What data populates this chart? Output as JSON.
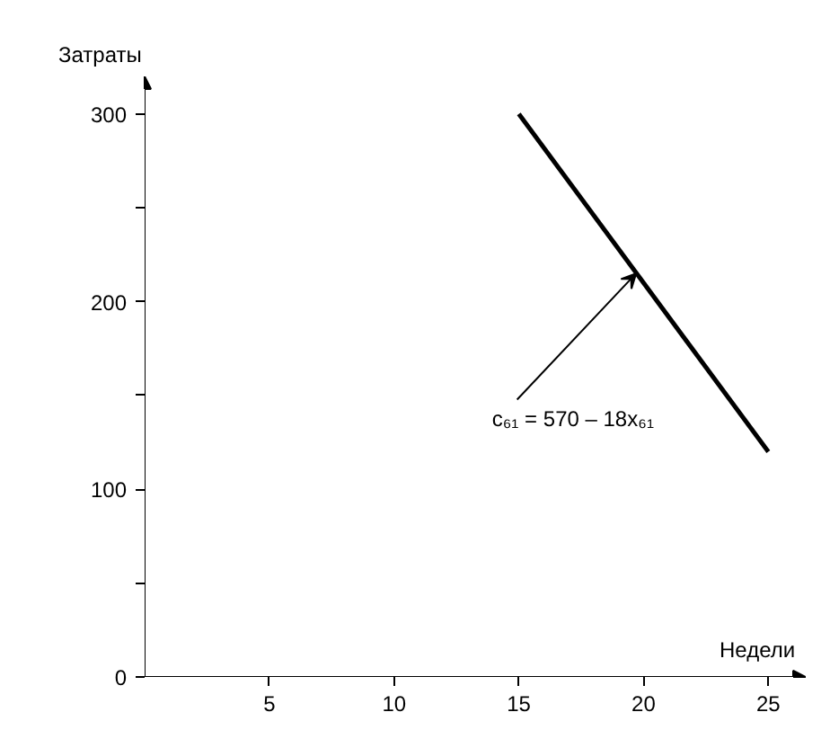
{
  "chart_data": {
    "type": "line",
    "xlabel": "Недели",
    "ylabel": "Затраты",
    "x": [
      15,
      25
    ],
    "series": [
      {
        "color": "#000000",
        "values": [
          300,
          120
        ]
      }
    ],
    "xlim": [
      0,
      26.5
    ],
    "ylim": [
      0,
      320
    ],
    "xticks": [
      5,
      10,
      15,
      20,
      25
    ],
    "yticks": [
      0,
      {
        "value": 50,
        "label": null
      },
      100,
      {
        "value": 150,
        "label": null
      },
      200,
      {
        "value": 250,
        "label": null
      },
      300
    ],
    "annotations": [
      {
        "text": "c₆₁ = 570 – 18x₆₁",
        "x": 19.7,
        "y": 215
      }
    ],
    "grid": false,
    "marker": "none",
    "line_style": "solid"
  }
}
